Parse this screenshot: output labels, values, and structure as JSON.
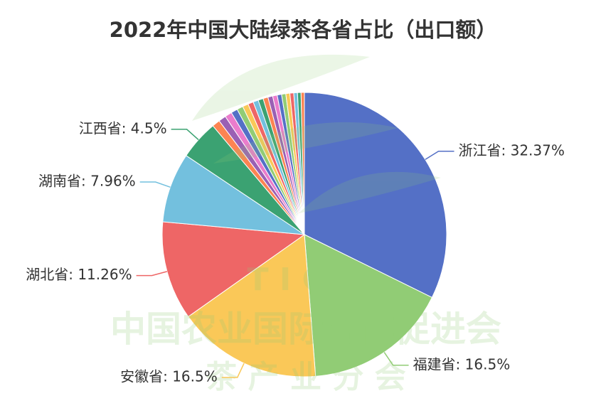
{
  "chart_data": {
    "type": "pie",
    "title": "2022年中国大陆绿茶各省占比（出口额）",
    "watermark": [
      "T  I  C  C",
      "中国农业国际合作促进会",
      "茶    产    业    分    会"
    ],
    "values": [
      32.37,
      16.5,
      16.5,
      11.26,
      7.96,
      4.5,
      0.9,
      0.85,
      0.8,
      0.75,
      0.7,
      0.66,
      0.62,
      0.6,
      0.58,
      0.56,
      0.54,
      0.52,
      0.5,
      0.48,
      0.46,
      0.44,
      0.42,
      0.4,
      0.38
    ],
    "value_labels": [
      "浙江省: 32.37%",
      "福建省: 16.5%",
      "安徽省: 16.5%",
      "湖北省: 11.26%",
      "湖南省: 7.96%",
      "江西省: 4.5%",
      null,
      null,
      null,
      null,
      null,
      null,
      null,
      null,
      null,
      null,
      null,
      null,
      null,
      null,
      null,
      null,
      null,
      null,
      null
    ],
    "colors": [
      "#5470c6",
      "#91cc75",
      "#fac858",
      "#ee6666",
      "#73c0de",
      "#3ba272",
      "#fc8452",
      "#9a60b4",
      "#ea7ccc"
    ]
  }
}
